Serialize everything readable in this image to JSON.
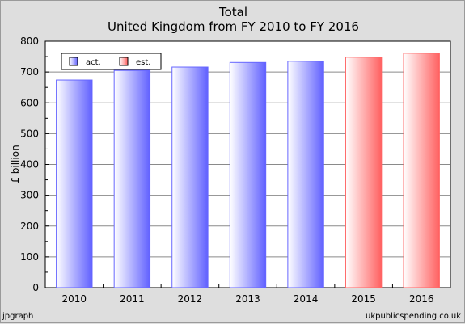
{
  "chart_data": {
    "type": "bar",
    "title": "Total",
    "subtitle": "United Kingdom from FY 2010 to FY 2016",
    "xlabel": "",
    "ylabel": "£ billion",
    "categories": [
      "2010",
      "2011",
      "2012",
      "2013",
      "2014",
      "2015",
      "2016"
    ],
    "series": [
      {
        "name": "act.",
        "values": [
          674,
          705,
          716,
          731,
          735,
          null,
          null
        ],
        "color": "#6666ff"
      },
      {
        "name": "est.",
        "values": [
          null,
          null,
          null,
          null,
          null,
          748,
          761
        ],
        "color": "#ff6666"
      }
    ],
    "ylim": [
      0,
      800
    ],
    "yticks": [
      0,
      100,
      200,
      300,
      400,
      500,
      600,
      700,
      800
    ],
    "grid": true,
    "legend_position": "top-left"
  },
  "footer": {
    "left": "jpgraph",
    "right": "ukpublicspending.co.uk"
  }
}
